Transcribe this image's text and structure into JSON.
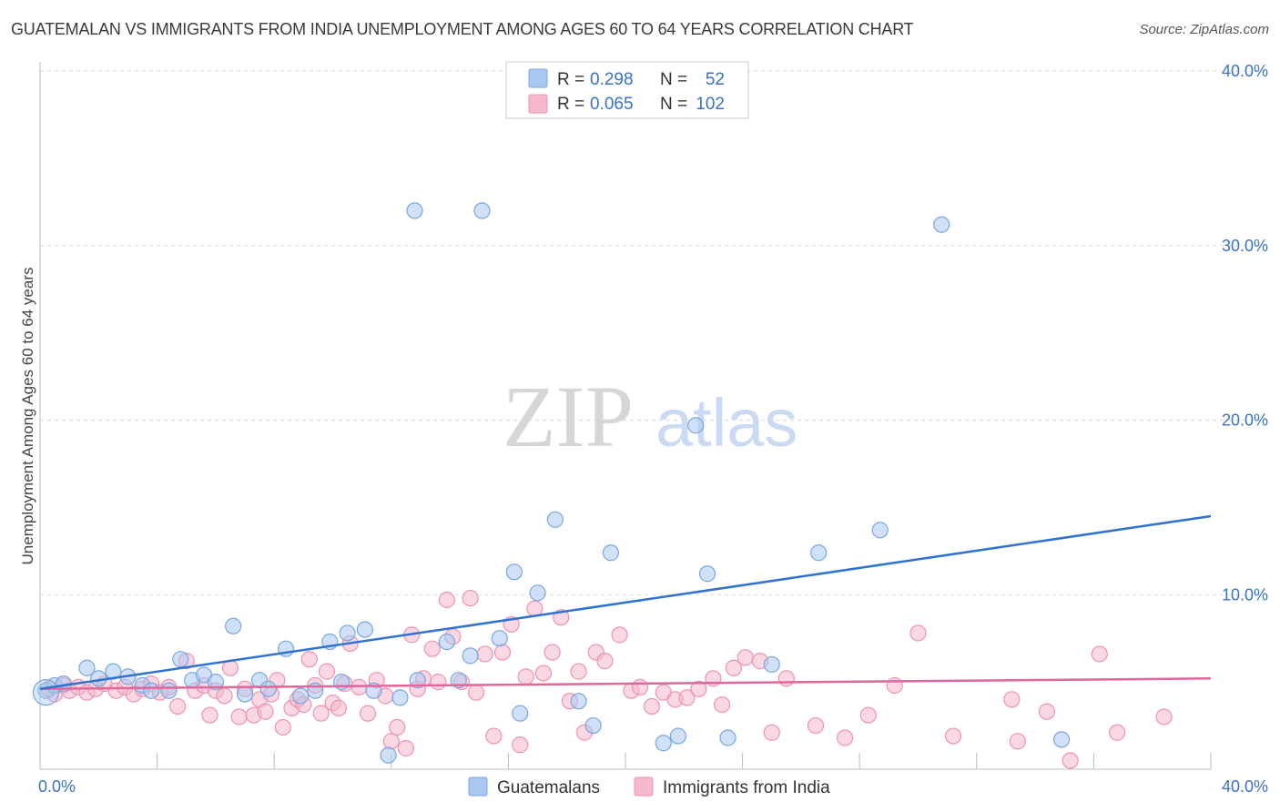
{
  "title": "GUATEMALAN VS IMMIGRANTS FROM INDIA UNEMPLOYMENT AMONG AGES 60 TO 64 YEARS CORRELATION CHART",
  "source": "Source: ZipAtlas.com",
  "watermark": {
    "zip": "ZIP",
    "atlas": "atlas"
  },
  "colors": {
    "blue_fill": "#a9c8f0",
    "blue_stroke": "#7aa6e0",
    "blue_line": "#2f72d0",
    "pink_fill": "#f5b8cc",
    "pink_stroke": "#ec93b1",
    "pink_line": "#e0679a",
    "axis_text": "#3a72c4",
    "grid": "#d9d9d9"
  },
  "legend": {
    "series": [
      {
        "r_label": "R =",
        "r_value": "0.298",
        "n_label": "N =",
        "n_value": "52"
      },
      {
        "r_label": "R =",
        "r_value": "0.065",
        "n_label": "N =",
        "n_value": "102"
      }
    ]
  },
  "chart_data": {
    "type": "scatter",
    "title": "GUATEMALAN VS IMMIGRANTS FROM INDIA UNEMPLOYMENT AMONG AGES 60 TO 64 YEARS CORRELATION CHART",
    "xlabel": "",
    "ylabel": "Unemployment Among Ages 60 to 64 years",
    "xlim": [
      0,
      40
    ],
    "ylim": [
      0,
      40
    ],
    "x_tick_labels": [
      "0.0%",
      "40.0%"
    ],
    "y_ticks": [
      10,
      20,
      30,
      40
    ],
    "y_tick_labels": [
      "10.0%",
      "20.0%",
      "30.0%",
      "40.0%"
    ],
    "legend_position": "top-center",
    "series": [
      {
        "name": "Guatemalans",
        "trend": {
          "x": [
            0,
            40
          ],
          "y": [
            4.6,
            14.5
          ]
        },
        "points": [
          [
            0.2,
            4.5
          ],
          [
            0.5,
            4.8
          ],
          [
            0.8,
            4.9
          ],
          [
            1.6,
            5.8
          ],
          [
            2.0,
            5.2
          ],
          [
            2.5,
            5.6
          ],
          [
            3.0,
            5.3
          ],
          [
            3.5,
            4.8
          ],
          [
            3.8,
            4.5
          ],
          [
            4.4,
            4.5
          ],
          [
            4.8,
            6.3
          ],
          [
            5.2,
            5.1
          ],
          [
            5.6,
            5.4
          ],
          [
            6.0,
            5.0
          ],
          [
            6.6,
            8.2
          ],
          [
            7.0,
            4.3
          ],
          [
            7.5,
            5.1
          ],
          [
            7.8,
            4.6
          ],
          [
            8.4,
            6.9
          ],
          [
            8.9,
            4.2
          ],
          [
            9.4,
            4.5
          ],
          [
            9.9,
            7.3
          ],
          [
            10.3,
            5.0
          ],
          [
            10.5,
            7.8
          ],
          [
            11.1,
            8.0
          ],
          [
            11.4,
            4.5
          ],
          [
            11.9,
            0.8
          ],
          [
            12.3,
            4.1
          ],
          [
            12.8,
            32.0
          ],
          [
            12.9,
            5.1
          ],
          [
            13.9,
            7.3
          ],
          [
            14.3,
            5.1
          ],
          [
            14.7,
            6.5
          ],
          [
            15.1,
            32.0
          ],
          [
            15.7,
            7.5
          ],
          [
            16.2,
            11.3
          ],
          [
            16.4,
            3.2
          ],
          [
            17.0,
            10.1
          ],
          [
            17.6,
            14.3
          ],
          [
            18.4,
            3.9
          ],
          [
            18.9,
            2.5
          ],
          [
            19.5,
            12.4
          ],
          [
            21.3,
            1.5
          ],
          [
            21.8,
            1.9
          ],
          [
            22.4,
            19.7
          ],
          [
            22.8,
            11.2
          ],
          [
            23.5,
            1.8
          ],
          [
            25.0,
            6.0
          ],
          [
            26.6,
            12.4
          ],
          [
            28.7,
            13.7
          ],
          [
            30.8,
            31.2
          ],
          [
            34.9,
            1.7
          ]
        ]
      },
      {
        "name": "Immigrants from India",
        "trend": {
          "x": [
            0,
            40
          ],
          "y": [
            4.6,
            5.2
          ]
        },
        "points": [
          [
            0.3,
            4.6
          ],
          [
            0.5,
            4.3
          ],
          [
            0.8,
            4.8
          ],
          [
            1.0,
            4.5
          ],
          [
            1.3,
            4.7
          ],
          [
            1.6,
            4.4
          ],
          [
            1.9,
            4.6
          ],
          [
            2.2,
            4.9
          ],
          [
            2.6,
            4.5
          ],
          [
            2.9,
            4.7
          ],
          [
            3.2,
            4.3
          ],
          [
            3.5,
            4.6
          ],
          [
            3.8,
            4.9
          ],
          [
            4.1,
            4.4
          ],
          [
            4.4,
            4.7
          ],
          [
            4.7,
            3.6
          ],
          [
            5.0,
            6.2
          ],
          [
            5.3,
            4.5
          ],
          [
            5.6,
            4.8
          ],
          [
            5.8,
            3.1
          ],
          [
            6.0,
            4.5
          ],
          [
            6.3,
            4.2
          ],
          [
            6.5,
            5.8
          ],
          [
            6.8,
            3.0
          ],
          [
            7.0,
            4.6
          ],
          [
            7.3,
            3.1
          ],
          [
            7.5,
            4.0
          ],
          [
            7.7,
            3.3
          ],
          [
            7.9,
            4.3
          ],
          [
            8.1,
            5.1
          ],
          [
            8.3,
            2.4
          ],
          [
            8.6,
            3.5
          ],
          [
            8.8,
            4.0
          ],
          [
            9.0,
            3.7
          ],
          [
            9.2,
            6.3
          ],
          [
            9.4,
            4.8
          ],
          [
            9.6,
            3.2
          ],
          [
            9.8,
            5.6
          ],
          [
            10.0,
            3.8
          ],
          [
            10.2,
            3.5
          ],
          [
            10.4,
            4.9
          ],
          [
            10.6,
            7.2
          ],
          [
            10.9,
            4.7
          ],
          [
            11.2,
            3.2
          ],
          [
            11.5,
            5.1
          ],
          [
            11.8,
            4.2
          ],
          [
            12.0,
            1.6
          ],
          [
            12.2,
            2.4
          ],
          [
            12.5,
            1.2
          ],
          [
            12.7,
            7.7
          ],
          [
            12.9,
            4.6
          ],
          [
            13.1,
            5.2
          ],
          [
            13.4,
            6.9
          ],
          [
            13.6,
            5.0
          ],
          [
            13.9,
            9.7
          ],
          [
            14.1,
            7.6
          ],
          [
            14.4,
            5.0
          ],
          [
            14.7,
            9.8
          ],
          [
            14.9,
            4.4
          ],
          [
            15.2,
            6.6
          ],
          [
            15.5,
            1.9
          ],
          [
            15.8,
            6.7
          ],
          [
            16.1,
            8.3
          ],
          [
            16.4,
            1.4
          ],
          [
            16.6,
            5.3
          ],
          [
            16.9,
            9.2
          ],
          [
            17.2,
            5.5
          ],
          [
            17.5,
            6.7
          ],
          [
            17.8,
            8.7
          ],
          [
            18.1,
            3.9
          ],
          [
            18.4,
            5.6
          ],
          [
            18.6,
            2.1
          ],
          [
            19.0,
            6.7
          ],
          [
            19.3,
            6.2
          ],
          [
            19.8,
            7.7
          ],
          [
            20.2,
            4.5
          ],
          [
            20.5,
            4.7
          ],
          [
            20.9,
            3.6
          ],
          [
            21.3,
            4.4
          ],
          [
            21.7,
            4.0
          ],
          [
            22.1,
            4.1
          ],
          [
            22.5,
            4.6
          ],
          [
            23.0,
            5.2
          ],
          [
            23.3,
            3.7
          ],
          [
            23.7,
            5.8
          ],
          [
            24.1,
            6.4
          ],
          [
            24.6,
            6.2
          ],
          [
            25.0,
            2.1
          ],
          [
            25.5,
            5.2
          ],
          [
            26.5,
            2.5
          ],
          [
            27.5,
            1.8
          ],
          [
            28.3,
            3.1
          ],
          [
            29.2,
            4.8
          ],
          [
            30.0,
            7.8
          ],
          [
            31.2,
            1.9
          ],
          [
            33.2,
            4.0
          ],
          [
            33.4,
            1.6
          ],
          [
            34.4,
            3.3
          ],
          [
            35.2,
            0.5
          ],
          [
            36.2,
            6.6
          ],
          [
            36.8,
            2.1
          ],
          [
            38.4,
            3.0
          ]
        ]
      }
    ]
  },
  "bottom_legend": [
    "Guatemalans",
    "Immigrants from India"
  ]
}
